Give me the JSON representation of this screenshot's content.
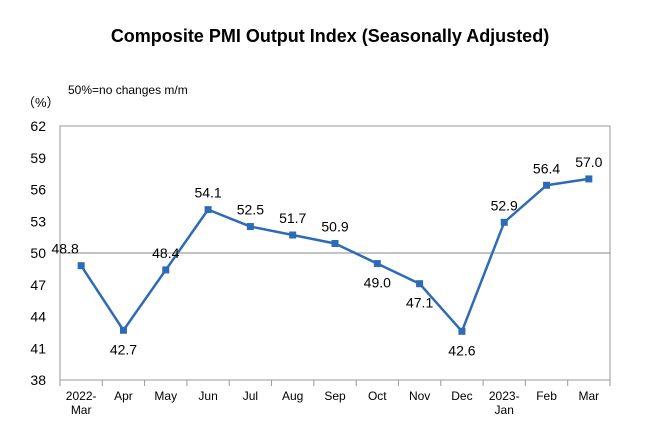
{
  "chart_data": {
    "type": "line",
    "title": "Composite PMI Output Index (Seasonally Adjusted)",
    "unit_label": "（%）",
    "annotation": "50%=no changes m/m",
    "categories": [
      [
        "2022-",
        "Mar"
      ],
      [
        "Apr"
      ],
      [
        "May"
      ],
      [
        "Jun"
      ],
      [
        "Jul"
      ],
      [
        "Aug"
      ],
      [
        "Sep"
      ],
      [
        "Oct"
      ],
      [
        "Nov"
      ],
      [
        "Dec"
      ],
      [
        "2023-",
        "Jan"
      ],
      [
        "Feb"
      ],
      [
        "Mar"
      ]
    ],
    "series": [
      {
        "values": [
          48.8,
          42.7,
          48.4,
          54.1,
          52.5,
          51.7,
          50.9,
          49.0,
          47.1,
          42.6,
          52.9,
          56.4,
          57.0
        ],
        "labels": [
          "48.8",
          "42.7",
          "48.4",
          "54.1",
          "52.5",
          "51.7",
          "50.9",
          "49.0",
          "47.1",
          "42.6",
          "52.9",
          "56.4",
          "57.0"
        ]
      }
    ],
    "yticks": [
      38,
      41,
      44,
      47,
      50,
      53,
      56,
      59,
      62
    ],
    "ylim": [
      38,
      62
    ],
    "reference_line": 50,
    "grid": false,
    "legend": "none",
    "line_color": "#2e6bb7"
  }
}
